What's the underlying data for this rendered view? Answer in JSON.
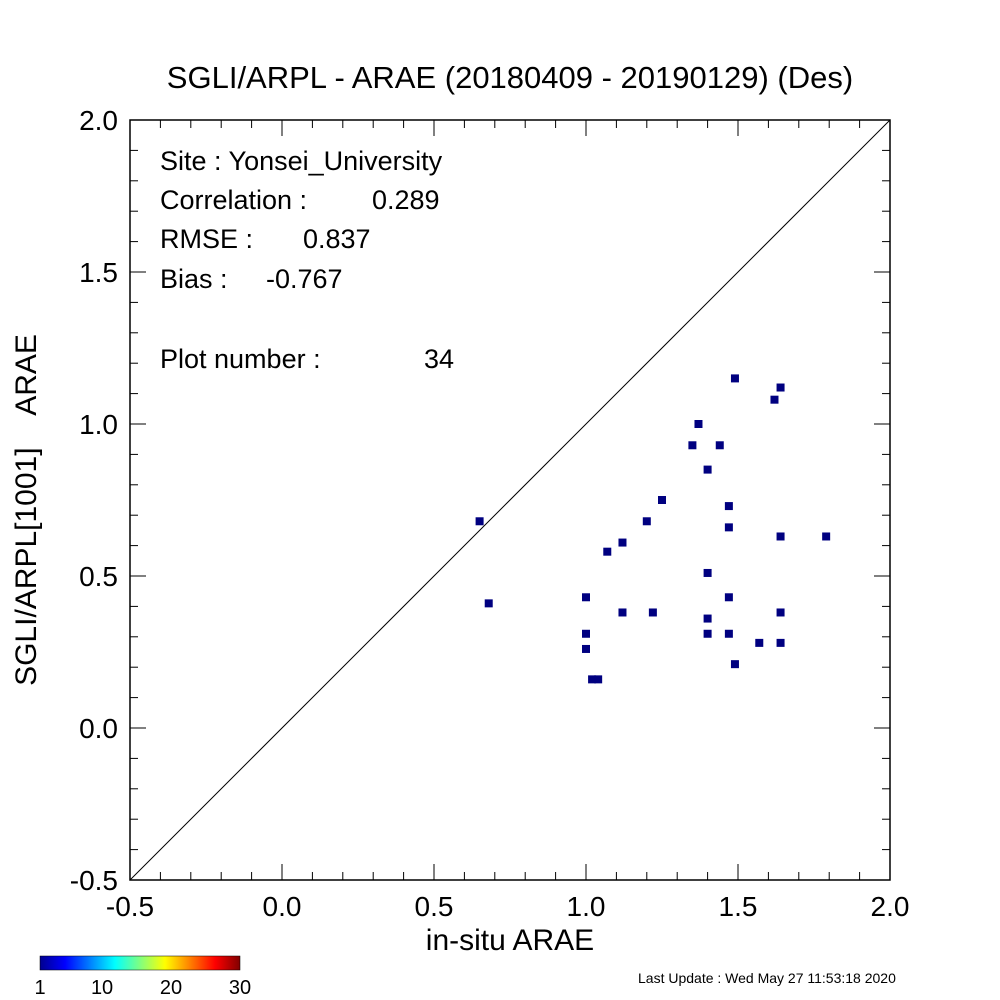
{
  "chart_data": {
    "type": "scatter",
    "title": "SGLI/ARPL - ARAE (20180409 - 20190129) (Des)",
    "xlabel": "in-situ ARAE",
    "ylabel": "SGLI/ARPL[1001]    ARAE",
    "xlim": [
      -0.5,
      2.0
    ],
    "ylim": [
      -0.5,
      2.0
    ],
    "xticks": [
      "-0.5",
      "0.0",
      "0.5",
      "1.0",
      "1.5",
      "2.0"
    ],
    "yticks": [
      "-0.5",
      "0.0",
      "0.5",
      "1.0",
      "1.5",
      "2.0"
    ],
    "one_to_one_line": true,
    "grid": false,
    "marker_color": "#000080",
    "points": [
      [
        0.65,
        0.68
      ],
      [
        0.68,
        0.41
      ],
      [
        1.0,
        0.43
      ],
      [
        1.0,
        0.31
      ],
      [
        1.0,
        0.26
      ],
      [
        1.02,
        0.16
      ],
      [
        1.04,
        0.16
      ],
      [
        1.07,
        0.58
      ],
      [
        1.12,
        0.61
      ],
      [
        1.12,
        0.38
      ],
      [
        1.2,
        0.68
      ],
      [
        1.22,
        0.38
      ],
      [
        1.25,
        0.75
      ],
      [
        1.35,
        0.93
      ],
      [
        1.37,
        1.0
      ],
      [
        1.4,
        0.85
      ],
      [
        1.4,
        0.51
      ],
      [
        1.4,
        0.36
      ],
      [
        1.4,
        0.31
      ],
      [
        1.44,
        0.93
      ],
      [
        1.47,
        0.73
      ],
      [
        1.47,
        0.66
      ],
      [
        1.47,
        0.43
      ],
      [
        1.47,
        0.31
      ],
      [
        1.49,
        1.15
      ],
      [
        1.49,
        0.21
      ],
      [
        1.57,
        0.28
      ],
      [
        1.62,
        1.08
      ],
      [
        1.64,
        1.12
      ],
      [
        1.64,
        0.63
      ],
      [
        1.64,
        0.38
      ],
      [
        1.64,
        0.28
      ],
      [
        1.79,
        0.63
      ]
    ]
  },
  "stats": {
    "site": "Site : Yonsei_University",
    "correlation_label": "Correlation :",
    "correlation_value": "0.289",
    "rmse_label": "RMSE :",
    "rmse_value": "0.837",
    "bias_label": "Bias :",
    "bias_value": "-0.767",
    "plot_number_label": "Plot number :",
    "plot_number_value": "34"
  },
  "colorbar": {
    "ticks": [
      "1",
      "10",
      "20",
      "30"
    ],
    "colors": [
      "#00008f",
      "#0000ff",
      "#0080ff",
      "#00ffff",
      "#80ff80",
      "#ffff00",
      "#ff8000",
      "#ff0000",
      "#800000"
    ]
  },
  "footer": {
    "last_update": "Last Update : Wed May 27 11:53:18 2020"
  }
}
